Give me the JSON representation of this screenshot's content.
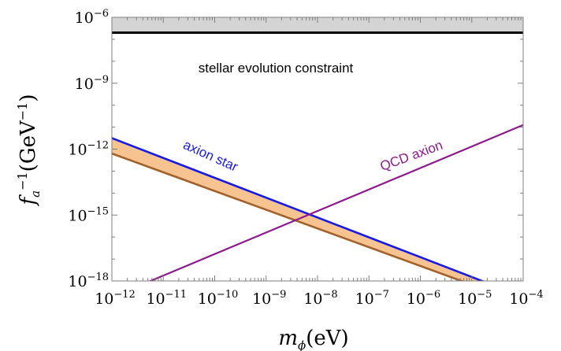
{
  "chart_data": {
    "type": "line",
    "xlabel": {
      "main": "m",
      "sub": "ϕ",
      "unit": "(eV)"
    },
    "ylabel": {
      "main": "f",
      "sub": "a",
      "sup": "−1",
      "unit": "(GeV",
      "unit_sup": "−1",
      "unit_close": ")"
    },
    "xscale": "log",
    "yscale": "log",
    "xlim_exp": [
      -12,
      -4
    ],
    "ylim_exp": [
      -18,
      -6
    ],
    "x_ticks_exp": [
      -12,
      -11,
      -10,
      -9,
      -8,
      -7,
      -6,
      -5,
      -4
    ],
    "y_ticks_exp": [
      -18,
      -15,
      -12,
      -9,
      -6
    ],
    "tick_base": "10",
    "grid": false,
    "series": [
      {
        "name": "axion star",
        "color": "#1a1adf",
        "x_exp": [
          -12,
          -4.8
        ],
        "y_exp": [
          -11.5,
          -18
        ]
      },
      {
        "name": "",
        "color": "#a0622d",
        "x_exp": [
          -12,
          -5.2
        ],
        "y_exp": [
          -12.2,
          -18
        ]
      },
      {
        "name": "QCD axion",
        "color": "#8b1a8b",
        "x_exp": [
          -11.25,
          -4
        ],
        "y_exp": [
          -18,
          -10.9
        ]
      }
    ],
    "band": {
      "between": [
        "axion star",
        "lower boundary"
      ],
      "color": "#f7c491"
    },
    "shaded_region": {
      "y_exp": [
        -6.7,
        -6
      ],
      "color": "#d4d4d4",
      "line_color": "#000000"
    },
    "annotations": [
      {
        "text": "stellar evolution constraint",
        "color": "#000000"
      },
      {
        "text": "axion star",
        "color": "#1a1adf"
      },
      {
        "text": "QCD axion",
        "color": "#8b1a8b"
      }
    ]
  }
}
